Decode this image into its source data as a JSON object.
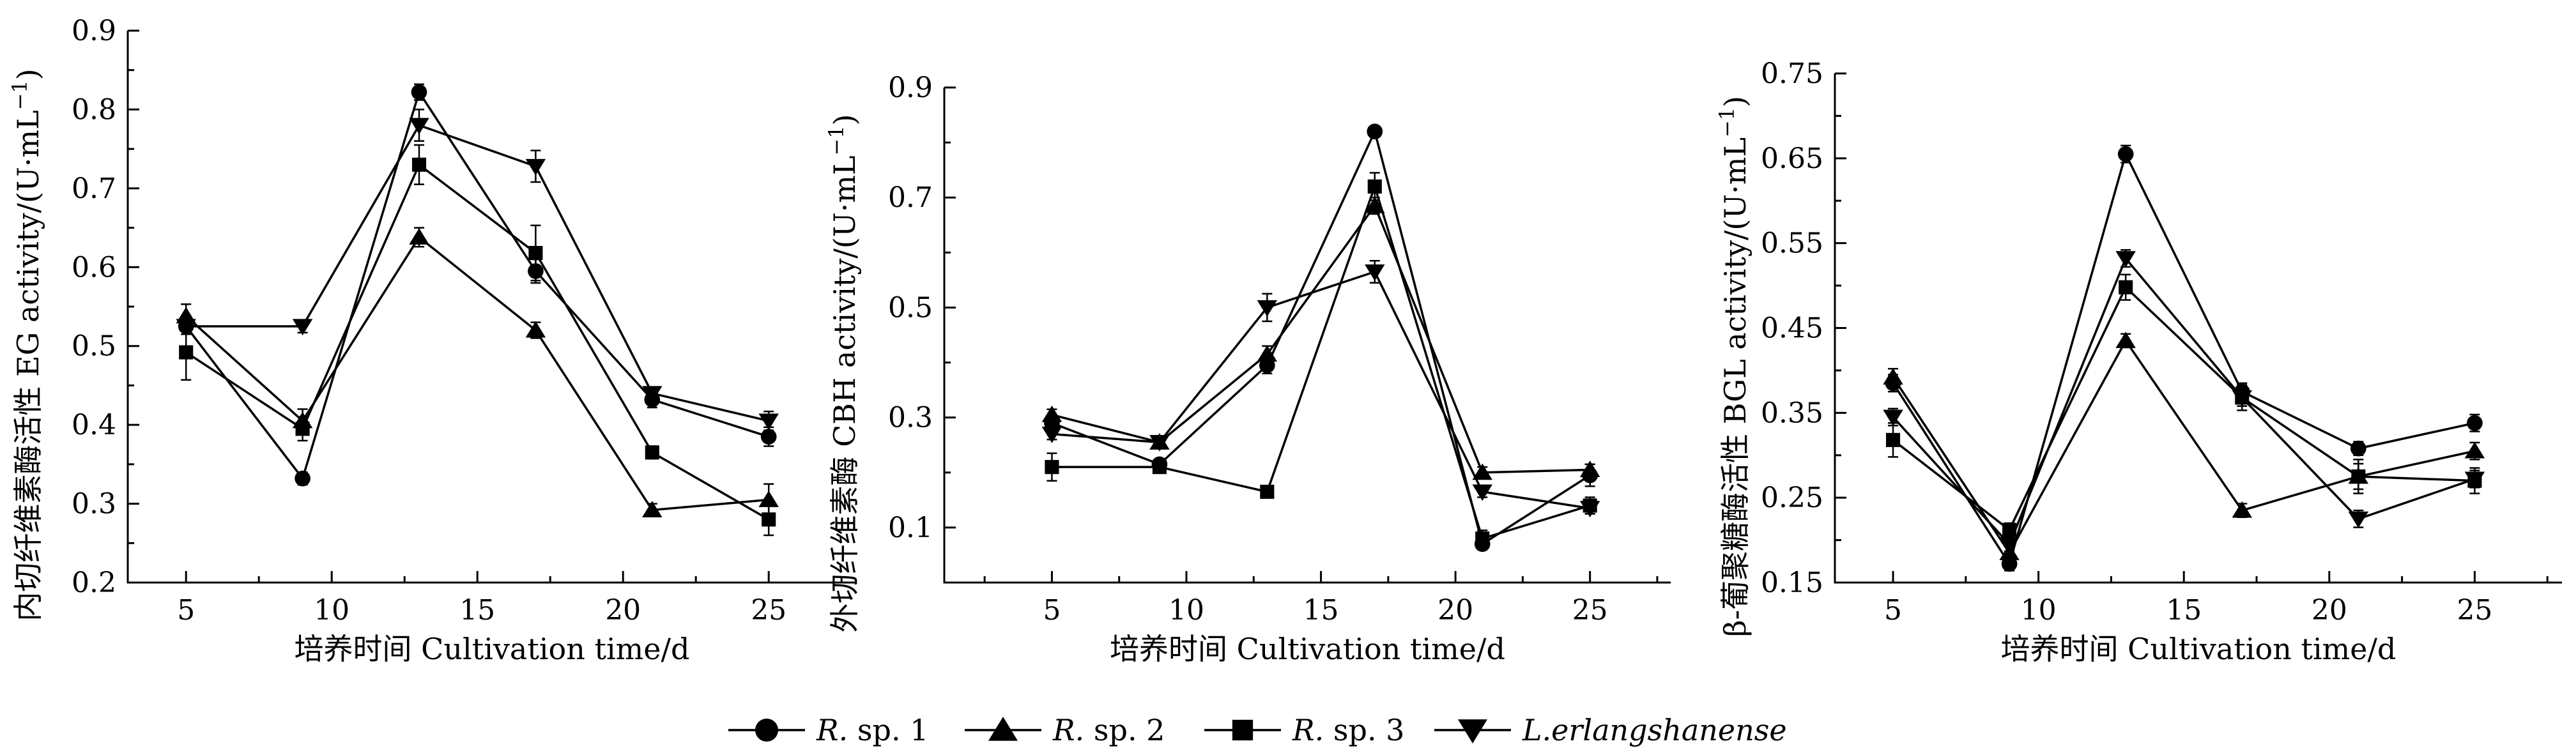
{
  "legend": [
    {
      "marker": "circle",
      "name_italic": "R.",
      "name_rest": " sp. 1"
    },
    {
      "marker": "triangle-up",
      "name_italic": "R.",
      "name_rest": " sp. 2"
    },
    {
      "marker": "square",
      "name_italic": "R.",
      "name_rest": " sp. 3"
    },
    {
      "marker": "triangle-down",
      "name_italic": "L.erlangshanense",
      "name_rest": ""
    }
  ],
  "chart_data": [
    {
      "type": "line",
      "xlabel": "培养时间 Cultivation time/d",
      "ylabel_main": "内切纤维素酶活性 EG activity/(U·mL",
      "ylabel_sup": "−1",
      "ylabel_close": ")",
      "x": [
        5,
        9,
        13,
        17,
        21,
        25
      ],
      "xlim": [
        3,
        28
      ],
      "xticks": [
        5,
        10,
        15,
        20,
        25
      ],
      "xtick_labels": [
        "5",
        "10",
        "15",
        "20",
        "25"
      ],
      "ylim": [
        0.2,
        0.9
      ],
      "yticks": [
        0.2,
        0.3,
        0.4,
        0.5,
        0.6,
        0.7,
        0.8,
        0.9
      ],
      "ytick_labels": [
        "0.2",
        "0.3",
        "0.4",
        "0.5",
        "0.6",
        "0.7",
        "0.8",
        "0.9"
      ],
      "series": [
        {
          "marker": "circle",
          "values": [
            0.525,
            0.332,
            0.822,
            0.595,
            0.432,
            0.385
          ],
          "errors": [
            0.01,
            0.008,
            0.01,
            0.015,
            0.01,
            0.012
          ]
        },
        {
          "marker": "triangle-up",
          "values": [
            0.538,
            0.405,
            0.638,
            0.52,
            0.292,
            0.305
          ],
          "errors": [
            0.015,
            0.015,
            0.012,
            0.01,
            0.008,
            0.02
          ]
        },
        {
          "marker": "square",
          "values": [
            0.492,
            0.395,
            0.73,
            0.618,
            0.365,
            0.28
          ],
          "errors": [
            0.035,
            0.015,
            0.025,
            0.035,
            0.008,
            0.02
          ]
        },
        {
          "marker": "triangle-down",
          "values": [
            0.525,
            0.525,
            0.78,
            0.728,
            0.44,
            0.405
          ],
          "errors": [
            0.01,
            0.008,
            0.02,
            0.02,
            0.008,
            0.012
          ]
        }
      ]
    },
    {
      "type": "line",
      "xlabel": "培养时间 Cultivation time/d",
      "ylabel_main": "外切纤维素酶 CBH activity/(U·mL",
      "ylabel_sup": "−1",
      "ylabel_close": ")",
      "x": [
        5,
        9,
        13,
        17,
        21,
        25
      ],
      "xlim": [
        1,
        28
      ],
      "xticks": [
        5,
        10,
        15,
        20,
        25
      ],
      "xtick_labels": [
        "5",
        "10",
        "15",
        "20",
        "25"
      ],
      "ylim": [
        0.0,
        0.9
      ],
      "yticks": [
        0.1,
        0.3,
        0.5,
        0.7,
        0.9
      ],
      "ytick_labels": [
        "0.1",
        "0.3",
        "0.5",
        "0.7",
        "0.9"
      ],
      "series": [
        {
          "marker": "circle",
          "values": [
            0.29,
            0.215,
            0.395,
            0.82,
            0.07,
            0.195
          ],
          "errors": [
            0.01,
            0.01,
            0.015,
            0.01,
            0.01,
            0.02
          ]
        },
        {
          "marker": "triangle-up",
          "values": [
            0.305,
            0.255,
            0.415,
            0.685,
            0.2,
            0.205
          ],
          "errors": [
            0.01,
            0.01,
            0.015,
            0.015,
            0.01,
            0.01
          ]
        },
        {
          "marker": "square",
          "values": [
            0.21,
            0.21,
            0.165,
            0.72,
            0.08,
            0.14
          ],
          "errors": [
            0.025,
            0.01,
            0.01,
            0.025,
            0.015,
            0.015
          ]
        },
        {
          "marker": "triangle-down",
          "values": [
            0.27,
            0.255,
            0.5,
            0.565,
            0.165,
            0.135
          ],
          "errors": [
            0.01,
            0.01,
            0.025,
            0.02,
            0.01,
            0.01
          ]
        }
      ]
    },
    {
      "type": "line",
      "xlabel": "培养时间 Cultivation time/d",
      "ylabel_main": "β-葡聚糖酶活性 BGL activity/(U·mL",
      "ylabel_sup": "−1",
      "ylabel_close": ")",
      "x": [
        5,
        9,
        13,
        17,
        21,
        25
      ],
      "xlim": [
        3,
        28
      ],
      "xticks": [
        5,
        10,
        15,
        20,
        25
      ],
      "xtick_labels": [
        "5",
        "10",
        "15",
        "20",
        "25"
      ],
      "ylim": [
        0.15,
        0.75
      ],
      "yticks": [
        0.15,
        0.25,
        0.35,
        0.45,
        0.55,
        0.65,
        0.75
      ],
      "ytick_labels": [
        "0.15",
        "0.25",
        "0.35",
        "0.45",
        "0.55",
        "0.65",
        "0.75"
      ],
      "series": [
        {
          "marker": "circle",
          "values": [
            0.385,
            0.172,
            0.655,
            0.375,
            0.308,
            0.338
          ],
          "errors": [
            0.01,
            0.008,
            0.01,
            0.01,
            0.008,
            0.01
          ]
        },
        {
          "marker": "triangle-up",
          "values": [
            0.392,
            0.185,
            0.435,
            0.235,
            0.275,
            0.305
          ],
          "errors": [
            0.01,
            0.008,
            0.008,
            0.008,
            0.015,
            0.01
          ]
        },
        {
          "marker": "square",
          "values": [
            0.318,
            0.212,
            0.498,
            0.368,
            0.275,
            0.27
          ],
          "errors": [
            0.02,
            0.008,
            0.015,
            0.015,
            0.02,
            0.015
          ]
        },
        {
          "marker": "triangle-down",
          "values": [
            0.345,
            0.195,
            0.532,
            0.368,
            0.225,
            0.272
          ],
          "errors": [
            0.01,
            0.008,
            0.01,
            0.01,
            0.01,
            0.01
          ]
        }
      ]
    }
  ]
}
